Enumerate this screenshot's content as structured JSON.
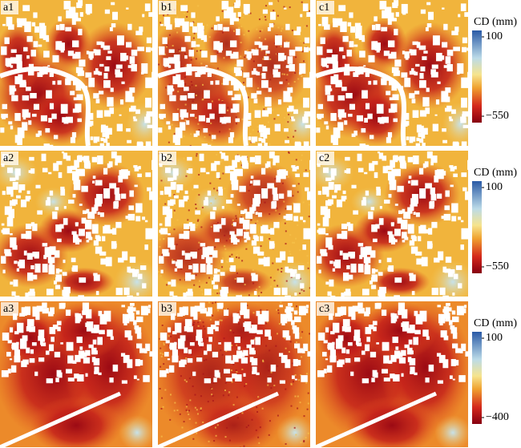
{
  "rows": [
    {
      "panels": [
        "a1",
        "b1",
        "c1"
      ],
      "colorbar": {
        "title": "CD (mm)",
        "ticks": [
          100,
          {
            "value": -550,
            "label": "−550"
          }
        ]
      }
    },
    {
      "panels": [
        "a2",
        "b2",
        "c2"
      ],
      "colorbar": {
        "title": "CD (mm)",
        "ticks": [
          100,
          {
            "value": -550,
            "label": "−550"
          }
        ]
      }
    },
    {
      "panels": [
        "a3",
        "b3",
        "c3"
      ],
      "colorbar": {
        "title": "CD (mm)",
        "ticks": [
          100,
          {
            "value": -400,
            "label": "−400"
          }
        ]
      }
    }
  ]
}
